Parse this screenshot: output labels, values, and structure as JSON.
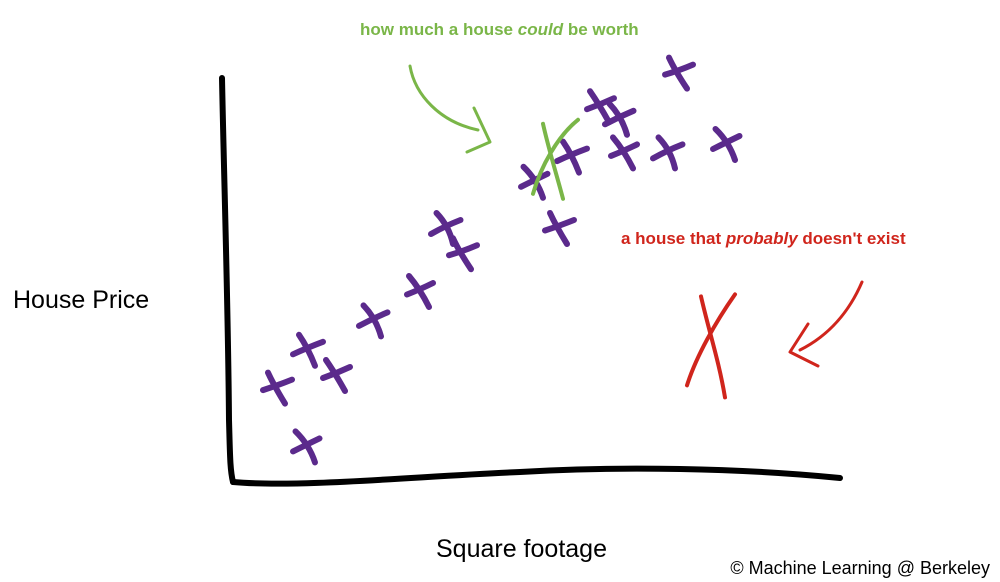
{
  "colors": {
    "axes": "#000000",
    "points": "#5b2a8c",
    "green": "#7ab648",
    "red": "#d0251c"
  },
  "labels": {
    "ylabel": "House Price",
    "xlabel": "Square footage",
    "credit": "© Machine Learning @ Berkeley"
  },
  "annotations": {
    "green": {
      "before": "how much a house ",
      "emphasis": "could",
      "after": " be worth"
    },
    "red": {
      "before": "a house that ",
      "emphasis": "probably",
      "after": " doesn't exist"
    }
  },
  "chart_data": {
    "type": "scatter",
    "xlabel": "Square footage",
    "ylabel": "House Price",
    "xlim": [
      0,
      100
    ],
    "ylim": [
      0,
      100
    ],
    "grid": false,
    "series": [
      {
        "points": [
          [
            12,
            8
          ],
          [
            7,
            22
          ],
          [
            12,
            31
          ],
          [
            17,
            25
          ],
          [
            23,
            38
          ],
          [
            31,
            45
          ],
          [
            35,
            60
          ],
          [
            38,
            54
          ],
          [
            50,
            71
          ],
          [
            54,
            60
          ],
          [
            56,
            77
          ],
          [
            61,
            89
          ],
          [
            64,
            86
          ],
          [
            65,
            78
          ],
          [
            72,
            78
          ],
          [
            74,
            97
          ],
          [
            82,
            80
          ]
        ]
      }
    ],
    "annotated_points": [
      {
        "label": "how much a house could be worth",
        "x": 53,
        "y": 76
      },
      {
        "label": "a house that probably doesn't exist",
        "x": 81,
        "y": 33
      }
    ]
  }
}
